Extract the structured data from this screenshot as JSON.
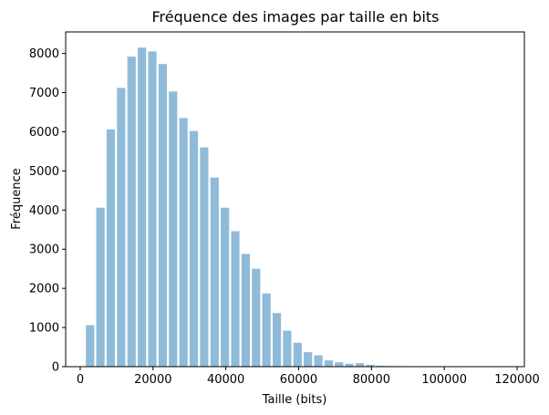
{
  "chart_data": {
    "type": "bar",
    "title": "Fréquence des images par taille en bits",
    "xlabel": "Taille (bits)",
    "ylabel": "Fréquence",
    "bar_color": "#8fbbd9",
    "xlim": [
      -4000,
      122000
    ],
    "ylim": [
      0,
      8550
    ],
    "bin_width": 2850,
    "bar_width": 2300,
    "x": [
      2700,
      5550,
      8400,
      11250,
      14100,
      16950,
      19800,
      22650,
      25500,
      28350,
      31200,
      34050,
      36900,
      39750,
      42600,
      45450,
      48300,
      51150,
      54000,
      56850,
      59700,
      62550,
      65400,
      68250,
      71100,
      73950,
      76800,
      79650,
      82500,
      85350,
      88200,
      91050,
      93900,
      96750,
      99600,
      102450,
      105300,
      108150,
      111000,
      113850,
      116700
    ],
    "values": [
      1060,
      4060,
      6060,
      7120,
      7920,
      8150,
      8050,
      7730,
      7030,
      6350,
      6020,
      5600,
      4830,
      4060,
      3460,
      2880,
      2500,
      1870,
      1370,
      920,
      610,
      370,
      290,
      160,
      110,
      75,
      90,
      50,
      22,
      18,
      14,
      10,
      8,
      6,
      4,
      3,
      2,
      2,
      1,
      1,
      1
    ],
    "xticks": [
      0,
      20000,
      40000,
      60000,
      80000,
      100000,
      120000
    ],
    "xtick_labels": [
      "0",
      "20000",
      "40000",
      "60000",
      "80000",
      "100000",
      "120000"
    ],
    "yticks": [
      0,
      1000,
      2000,
      3000,
      4000,
      5000,
      6000,
      7000,
      8000
    ],
    "ytick_labels": [
      "0",
      "1000",
      "2000",
      "3000",
      "4000",
      "5000",
      "6000",
      "7000",
      "8000"
    ],
    "grid": false,
    "legend": "none"
  }
}
